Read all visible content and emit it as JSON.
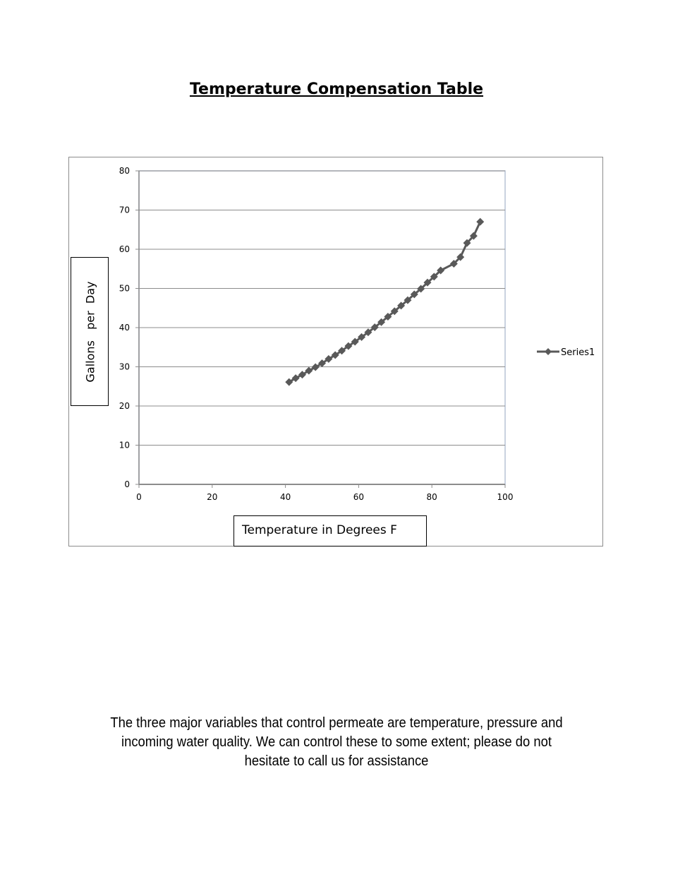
{
  "title": "Temperature Compensation Table",
  "caption_lines": [
    "The three major variables that control permeate are temperature, pressure and",
    "incoming water quality.  We can control these to some extent; please do not",
    "hesitate to call us for assistance"
  ],
  "chart_data": {
    "type": "line",
    "title": "",
    "xlabel": "Temperature in Degrees F",
    "ylabel": "Gallons   per  Day",
    "xlim": [
      0,
      100
    ],
    "ylim": [
      0,
      80
    ],
    "x_ticks": [
      0,
      20,
      40,
      60,
      80,
      100
    ],
    "y_ticks": [
      0,
      10,
      20,
      30,
      40,
      50,
      60,
      70,
      80
    ],
    "grid": "horizontal",
    "legend_position": "right",
    "series": [
      {
        "name": "Series1",
        "color": "#595959",
        "marker": "diamond",
        "x": [
          41,
          42.8,
          44.6,
          46.4,
          48.2,
          50,
          51.8,
          53.6,
          55.4,
          57.2,
          59,
          60.8,
          62.6,
          64.4,
          66.2,
          68,
          69.8,
          71.6,
          73.4,
          75.2,
          77,
          78.8,
          80.6,
          82.4,
          86,
          87.8,
          89.6,
          91.4,
          93.2
        ],
        "y": [
          26.1,
          27.1,
          28.0,
          29.0,
          29.9,
          30.9,
          32.0,
          33.0,
          34.1,
          35.3,
          36.4,
          37.6,
          38.8,
          40.1,
          41.4,
          42.8,
          44.2,
          45.6,
          47.0,
          48.5,
          49.9,
          51.5,
          53.0,
          54.6,
          56.3,
          58.0,
          61.6,
          63.4,
          67.0
        ]
      }
    ]
  }
}
